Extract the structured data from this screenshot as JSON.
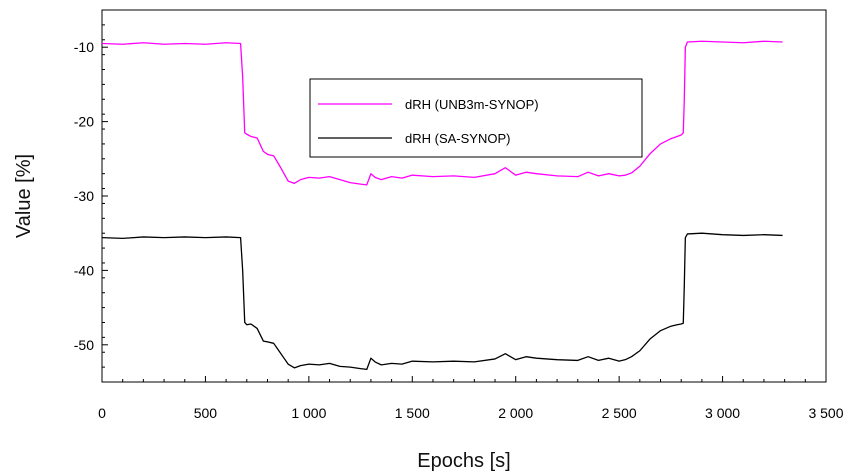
{
  "chart_data": {
    "type": "line",
    "xlabel": "Epochs [s]",
    "ylabel": "Value [%]",
    "xlim": [
      0,
      3500
    ],
    "ylim": [
      -55,
      -5
    ],
    "x_ticks": [
      0,
      500,
      1000,
      1500,
      2000,
      2500,
      3000,
      3500
    ],
    "x_tick_labels": [
      "0",
      "500",
      "1 000",
      "1 500",
      "2 000",
      "2 500",
      "3 000",
      "3 500"
    ],
    "y_ticks": [
      -10,
      -20,
      -30,
      -40,
      -50
    ],
    "y_tick_labels": [
      "-10",
      "-20",
      "-30",
      "-40",
      "-50"
    ],
    "grid": false,
    "legend_position": "top-center",
    "series": [
      {
        "name": "dRH (UNB3m-SYNOP)",
        "color": "#ff00ff",
        "x": [
          0,
          100,
          200,
          300,
          400,
          500,
          600,
          670,
          680,
          690,
          700,
          720,
          750,
          780,
          800,
          830,
          860,
          880,
          900,
          930,
          960,
          1000,
          1050,
          1100,
          1150,
          1200,
          1250,
          1280,
          1300,
          1320,
          1350,
          1400,
          1450,
          1500,
          1600,
          1700,
          1800,
          1900,
          1950,
          2000,
          2050,
          2100,
          2200,
          2300,
          2350,
          2400,
          2450,
          2500,
          2530,
          2560,
          2600,
          2650,
          2700,
          2750,
          2780,
          2800,
          2810,
          2815,
          2820,
          2830,
          2900,
          3000,
          3100,
          3200,
          3290
        ],
        "y": [
          -9.5,
          -9.6,
          -9.4,
          -9.6,
          -9.5,
          -9.6,
          -9.4,
          -9.5,
          -14,
          -21.5,
          -21.7,
          -22.0,
          -22.2,
          -24.0,
          -24.4,
          -24.6,
          -26.0,
          -27.0,
          -28.0,
          -28.3,
          -27.8,
          -27.5,
          -27.6,
          -27.4,
          -27.8,
          -28.2,
          -28.4,
          -28.5,
          -27.0,
          -27.5,
          -27.8,
          -27.4,
          -27.6,
          -27.2,
          -27.4,
          -27.3,
          -27.5,
          -27.0,
          -26.2,
          -27.2,
          -26.8,
          -27.0,
          -27.3,
          -27.4,
          -26.8,
          -27.3,
          -27.0,
          -27.3,
          -27.2,
          -26.9,
          -26.0,
          -24.3,
          -23.0,
          -22.3,
          -22.0,
          -21.8,
          -21.5,
          -17,
          -10.0,
          -9.3,
          -9.2,
          -9.3,
          -9.4,
          -9.2,
          -9.3
        ]
      },
      {
        "name": "dRH (SA-SYNOP)",
        "color": "#000000",
        "x": [
          0,
          100,
          200,
          300,
          400,
          500,
          600,
          670,
          680,
          690,
          700,
          720,
          750,
          780,
          800,
          830,
          860,
          880,
          900,
          930,
          960,
          1000,
          1050,
          1100,
          1150,
          1200,
          1250,
          1280,
          1300,
          1320,
          1350,
          1400,
          1450,
          1500,
          1600,
          1700,
          1800,
          1900,
          1950,
          2000,
          2050,
          2100,
          2200,
          2300,
          2350,
          2400,
          2450,
          2500,
          2530,
          2560,
          2600,
          2650,
          2700,
          2750,
          2780,
          2800,
          2810,
          2815,
          2820,
          2830,
          2900,
          3000,
          3100,
          3200,
          3290
        ],
        "y": [
          -35.6,
          -35.7,
          -35.5,
          -35.6,
          -35.5,
          -35.6,
          -35.5,
          -35.6,
          -40,
          -47.0,
          -47.3,
          -47.2,
          -47.8,
          -49.5,
          -49.6,
          -49.8,
          -51.0,
          -51.8,
          -52.6,
          -53.1,
          -52.8,
          -52.6,
          -52.7,
          -52.5,
          -52.9,
          -53.0,
          -53.2,
          -53.3,
          -51.8,
          -52.3,
          -52.7,
          -52.5,
          -52.6,
          -52.2,
          -52.3,
          -52.2,
          -52.3,
          -51.9,
          -51.2,
          -52.0,
          -51.6,
          -51.8,
          -52.0,
          -52.1,
          -51.6,
          -52.1,
          -51.8,
          -52.2,
          -52.0,
          -51.6,
          -50.8,
          -49.2,
          -48.1,
          -47.5,
          -47.3,
          -47.2,
          -47.1,
          -42,
          -35.6,
          -35.1,
          -35.0,
          -35.2,
          -35.3,
          -35.2,
          -35.3
        ]
      }
    ]
  }
}
